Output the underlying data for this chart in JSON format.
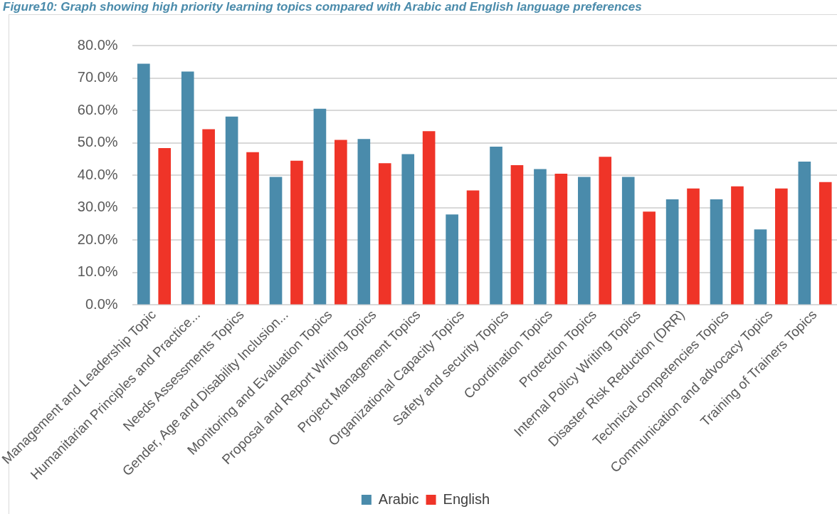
{
  "chart_data": {
    "type": "bar",
    "title": "Figure10: Graph showing high priority learning topics compared with Arabic and English language preferences",
    "categories": [
      "Management and Leadership Topic",
      "Humanitarian Principles and Practice...",
      "Needs Assessments Topics",
      "Gender, Age and Disability Inclusion...",
      "Monitoring and Evaluation Topics",
      "Proposal and Report Writing Topics",
      "Project Management Topics",
      "Organizational Capacity Topics",
      "Safety and security Topics",
      "Coordination Topics",
      "Protection Topics",
      "Internal Policy Writing Topics",
      "Disaster Risk Reduction (DRR)",
      "Technical competencies Topics",
      "Communication and advocacy Topics",
      "Training of Trainers Topics"
    ],
    "series": [
      {
        "name": "Arabic",
        "color": "#4a8bab",
        "values": [
          74.4,
          72.0,
          58.1,
          39.5,
          60.5,
          51.2,
          46.5,
          27.9,
          48.8,
          41.9,
          39.5,
          39.5,
          32.6,
          32.6,
          23.3,
          44.2
        ]
      },
      {
        "name": "English",
        "color": "#ef3428",
        "values": [
          48.4,
          54.2,
          47.1,
          44.5,
          50.9,
          43.7,
          53.6,
          35.3,
          43.1,
          40.5,
          45.7,
          28.8,
          35.9,
          36.6,
          35.9,
          37.9
        ]
      }
    ],
    "ylim": [
      0,
      80
    ],
    "yticks": [
      {
        "value": 0,
        "label": "0.0%"
      },
      {
        "value": 10,
        "label": "10.0%"
      },
      {
        "value": 20,
        "label": "20.0%"
      },
      {
        "value": 30,
        "label": "30.0%"
      },
      {
        "value": 40,
        "label": "40.0%"
      },
      {
        "value": 50,
        "label": "50.0%"
      },
      {
        "value": 60,
        "label": "60.0%"
      },
      {
        "value": 70,
        "label": "70.0%"
      },
      {
        "value": 80,
        "label": "80.0%"
      }
    ],
    "grid": "y",
    "legend": "bottom"
  }
}
